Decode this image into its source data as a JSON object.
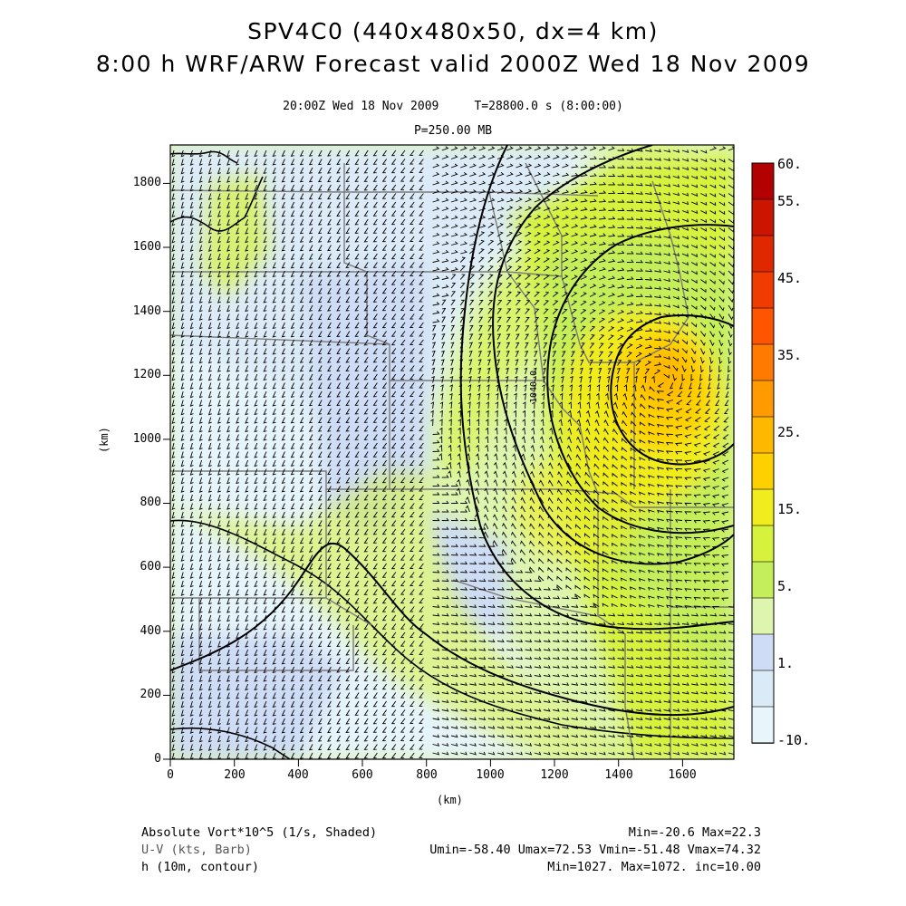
{
  "title": {
    "line1": "SPV4C0 (440x480x50, dx=4 km)",
    "line2": "8:00 h WRF/ARW Forecast valid 2000Z Wed 18 Nov 2009"
  },
  "subtitle": {
    "valid": "20:00Z Wed 18 Nov 2009     T=28800.0 s (8:00:00)",
    "level": "P=250.00 MB"
  },
  "axes": {
    "x_label": "(km)",
    "y_label": "(km)",
    "x_ticks": [
      "0",
      "200",
      "400",
      "600",
      "800",
      "1000",
      "1200",
      "1400",
      "1600"
    ],
    "y_ticks": [
      "0",
      "200",
      "400",
      "600",
      "800",
      "1000",
      "1200",
      "1400",
      "1600",
      "1800"
    ],
    "x_range_km": [
      0,
      1760
    ],
    "y_range_km": [
      0,
      1920
    ]
  },
  "colorbar": {
    "labels": [
      "60.",
      "55.",
      "45.",
      "35.",
      "25.",
      "15.",
      "5.",
      "1.",
      "-10."
    ],
    "colors": [
      "#b30000",
      "#cc1500",
      "#e02800",
      "#f03c00",
      "#ff5500",
      "#ff7a00",
      "#ff9a00",
      "#ffb800",
      "#ffd000",
      "#f0ec1e",
      "#d6f23c",
      "#c4ee5a",
      "#ddf5ae",
      "#cedcf5",
      "#dbeaf7",
      "#e8f6fc"
    ]
  },
  "contour": {
    "label": "1040.0"
  },
  "footer": {
    "field1_name": "Absolute Vort*10^5 (1/s, Shaded)",
    "field1_stats": "Min=-20.6 Max=22.3",
    "field2_name": "U-V (kts, Barb)",
    "field2_stats": "Umin=-58.40 Umax=72.53 Vmin=-51.48 Vmax=74.32",
    "field3_name": "h (10m, contour)",
    "field3_stats": "Min=1027. Max=1072. inc=10.00"
  }
}
